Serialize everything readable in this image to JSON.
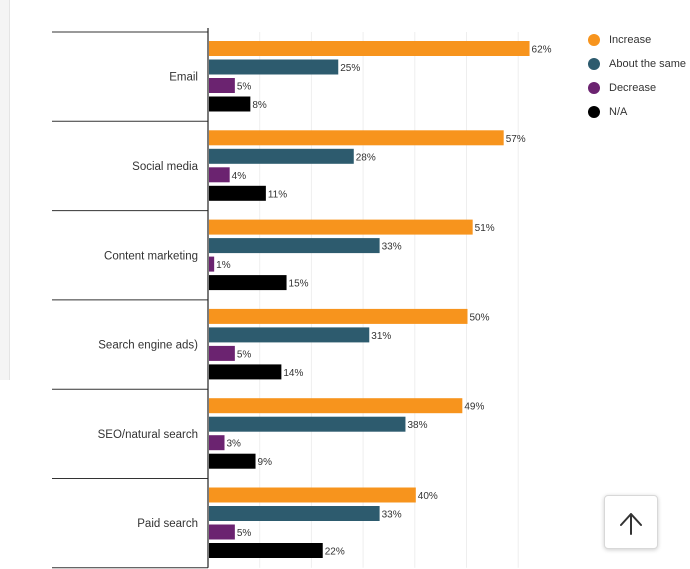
{
  "chart_data": {
    "type": "bar",
    "orientation": "horizontal",
    "categories": [
      "Email",
      "Social media",
      "Content marketing",
      "Search engine ads)",
      "SEO/natural search",
      "Paid search"
    ],
    "series": [
      {
        "name": "Increase",
        "color": "#f7941d",
        "values": [
          62,
          57,
          51,
          50,
          49,
          40
        ]
      },
      {
        "name": "About the same",
        "color": "#2d5b6e",
        "values": [
          25,
          28,
          33,
          31,
          38,
          33
        ]
      },
      {
        "name": "Decrease",
        "color": "#6b2370",
        "values": [
          5,
          4,
          1,
          5,
          3,
          5
        ]
      },
      {
        "name": "N/A",
        "color": "#000000",
        "values": [
          8,
          11,
          15,
          14,
          9,
          22
        ]
      }
    ],
    "value_suffix": "%",
    "xlim": [
      0,
      70
    ],
    "grid": true,
    "legend_position": "top-right"
  },
  "scroll_top": {
    "icon": "arrow-up-icon"
  }
}
